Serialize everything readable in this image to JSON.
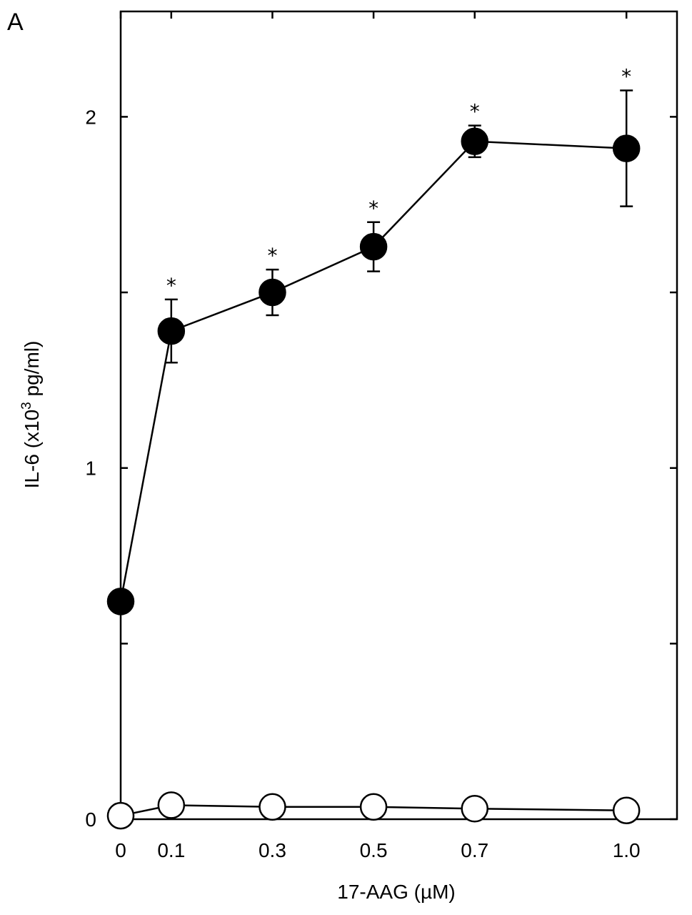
{
  "panel_label": "A",
  "chart_data": {
    "type": "line",
    "xlabel": "17-AAG (µM)",
    "ylabel": {
      "prefix": "IL-6 (x10",
      "superscript": "3",
      "suffix": " pg/ml)"
    },
    "x": [
      0,
      0.1,
      0.3,
      0.5,
      0.7,
      1.0
    ],
    "x_tick_labels": [
      "0",
      "0.1",
      "0.3",
      "0.5",
      "0.7",
      "1.0"
    ],
    "xlim": [
      0,
      1.1
    ],
    "ylim": [
      0,
      2.3
    ],
    "y_ticks": [
      0,
      0.5,
      1,
      1.5,
      2
    ],
    "y_tick_labels": {
      "0": "0",
      "1": "1",
      "2": "2"
    },
    "grid": false,
    "series": [
      {
        "marker": "filled-circle",
        "color": "#000000",
        "values": [
          0.62,
          1.39,
          1.5,
          1.63,
          1.93,
          1.91
        ],
        "errors": [
          null,
          0.09,
          0.065,
          0.07,
          0.045,
          0.165
        ],
        "significance": [
          "",
          "*",
          "*",
          "*",
          "*",
          "*"
        ]
      },
      {
        "marker": "open-circle",
        "color": "#000000",
        "values": [
          0.01,
          0.04,
          0.035,
          0.035,
          0.03,
          0.025
        ],
        "errors": [
          null,
          null,
          null,
          null,
          null,
          null
        ],
        "significance": [
          "",
          "",
          "",
          "",
          "",
          ""
        ]
      }
    ]
  }
}
